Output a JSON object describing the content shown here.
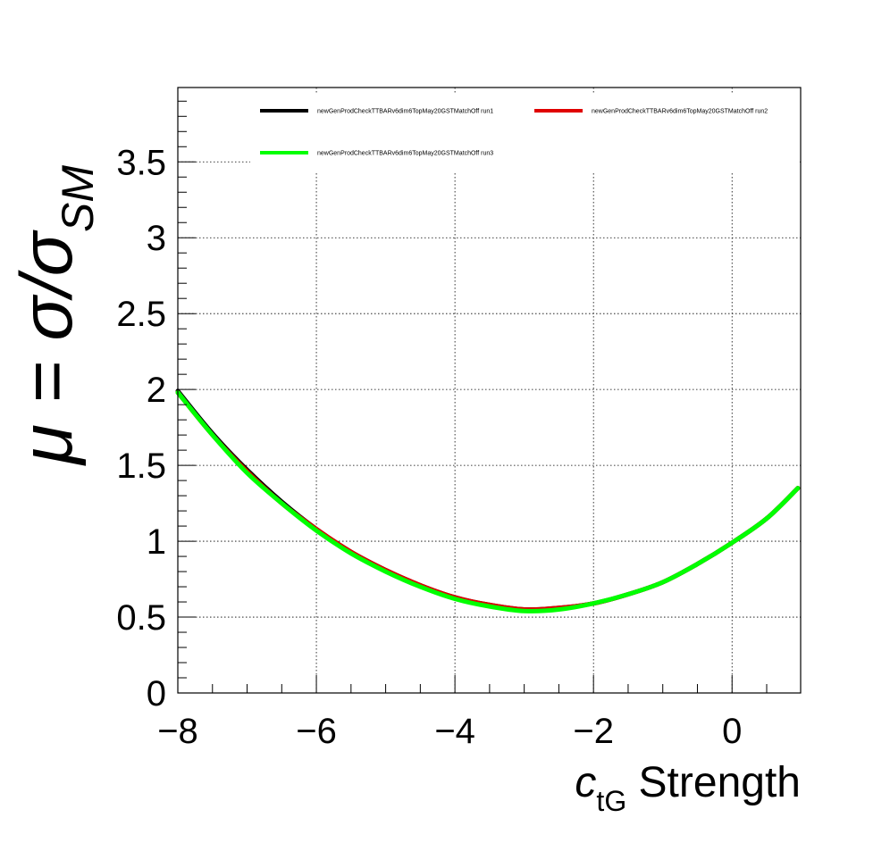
{
  "chart_data": {
    "type": "line",
    "xlabel": {
      "var": "c",
      "sub": "tG",
      "rest": " Strength"
    },
    "ylabel": {
      "main": "μ = σ/σ",
      "sub": "SM"
    },
    "xlim": [
      -8,
      0.99
    ],
    "ylim": [
      0,
      3.99
    ],
    "xticks": [
      -8,
      -6,
      -4,
      -2,
      0
    ],
    "xtick_labels": [
      "−8",
      "−6",
      "−4",
      "−2",
      "0"
    ],
    "yticks": [
      0,
      0.5,
      1,
      1.5,
      2,
      2.5,
      3,
      3.5
    ],
    "ytick_labels": [
      "0",
      "0.5",
      "1",
      "1.5",
      "2",
      "2.5",
      "3",
      "3.5"
    ],
    "grid": true,
    "legend_position": "top",
    "x": [
      -8,
      -7.5,
      -7,
      -6.5,
      -6,
      -5.5,
      -5,
      -4.5,
      -4,
      -3.5,
      -3,
      -2.5,
      -2,
      -1.5,
      -1,
      -0.5,
      0,
      0.5,
      0.95
    ],
    "series": [
      {
        "name": "newGenProdCheckTTBARv6dim6TopMay20GSTMatchOff run1",
        "color": "#000000",
        "values": [
          1.99,
          1.71,
          1.47,
          1.26,
          1.08,
          0.93,
          0.81,
          0.71,
          0.63,
          0.58,
          0.55,
          0.56,
          0.59,
          0.65,
          0.73,
          0.85,
          0.99,
          1.15,
          1.35
        ]
      },
      {
        "name": "newGenProdCheckTTBARv6dim6TopMay20GSTMatchOff run2",
        "color": "#e00000",
        "values": [
          1.98,
          1.7,
          1.46,
          1.25,
          1.08,
          0.93,
          0.81,
          0.71,
          0.63,
          0.58,
          0.55,
          0.56,
          0.59,
          0.65,
          0.73,
          0.85,
          0.99,
          1.15,
          1.35
        ]
      },
      {
        "name": "newGenProdCheckTTBARv6dim6TopMay20GSTMatchOff run3",
        "color": "#00ff00",
        "values": [
          1.98,
          1.7,
          1.45,
          1.25,
          1.07,
          0.92,
          0.8,
          0.7,
          0.62,
          0.57,
          0.54,
          0.55,
          0.59,
          0.65,
          0.73,
          0.85,
          0.99,
          1.15,
          1.35
        ]
      }
    ]
  }
}
